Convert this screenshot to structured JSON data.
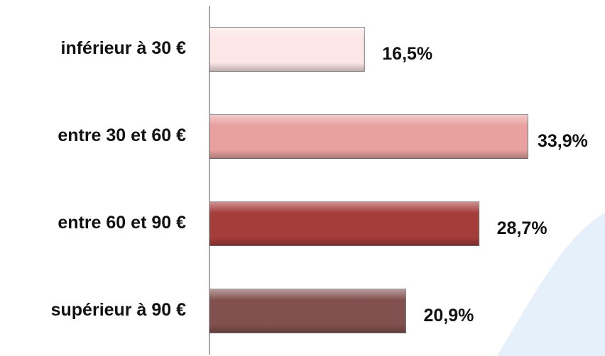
{
  "chart_data": {
    "type": "bar",
    "orientation": "horizontal",
    "categories": [
      "inférieur à 30 €",
      "entre 30 et 60 €",
      "entre 60 et 90 €",
      "supérieur à 90 €"
    ],
    "values": [
      16.5,
      33.9,
      28.7,
      20.9
    ],
    "value_labels": [
      "16,5%",
      "33,9%",
      "28,7%",
      "20,9%"
    ],
    "colors": [
      "#fde6e6",
      "#e8a19f",
      "#a53d3b",
      "#82514f"
    ],
    "xlim": [
      0,
      35
    ]
  }
}
